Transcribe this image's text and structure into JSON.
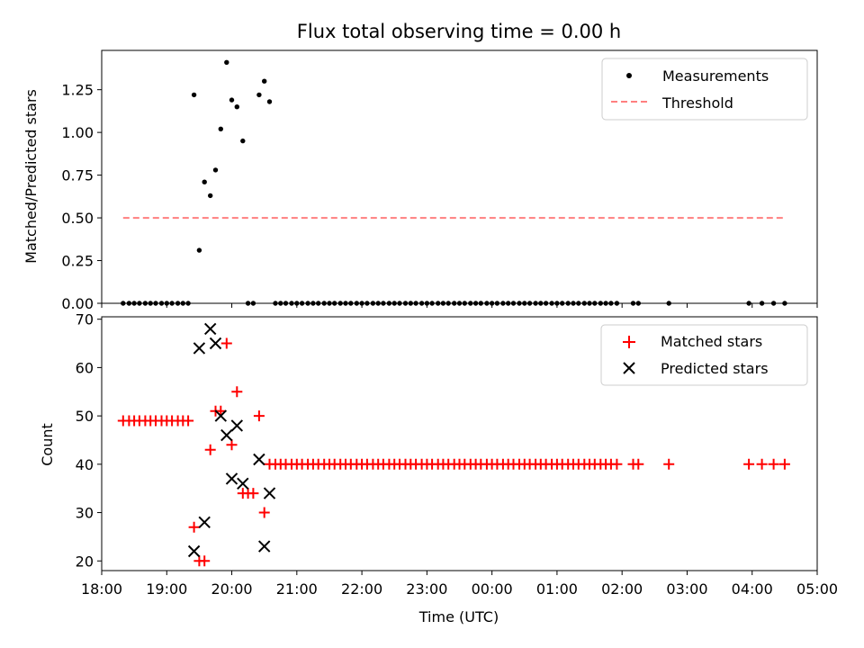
{
  "chart_data": [
    {
      "type": "scatter",
      "title": "Flux total observing time = 0.00 h",
      "xlabel": "",
      "ylabel": "Matched/Predicted stars",
      "xlim": [
        18.0,
        29.0
      ],
      "ylim": [
        0.0,
        1.48
      ],
      "yticks": [
        0.0,
        0.25,
        0.5,
        0.75,
        1.0,
        1.25
      ],
      "ytick_labels": [
        "0.00",
        "0.25",
        "0.50",
        "0.75",
        "1.00",
        "1.25"
      ],
      "legend_position": "top-right",
      "series": [
        {
          "name": "Measurements",
          "color": "#000000",
          "marker": "dot",
          "points": [
            [
              18.33,
              0
            ],
            [
              18.42,
              0
            ],
            [
              18.5,
              0
            ],
            [
              18.58,
              0
            ],
            [
              18.67,
              0
            ],
            [
              18.75,
              0
            ],
            [
              18.83,
              0
            ],
            [
              18.92,
              0
            ],
            [
              19.0,
              0
            ],
            [
              19.08,
              0
            ],
            [
              19.17,
              0
            ],
            [
              19.25,
              0
            ],
            [
              19.33,
              0
            ],
            [
              19.42,
              1.22
            ],
            [
              19.5,
              0.31
            ],
            [
              19.58,
              0.71
            ],
            [
              19.67,
              0.63
            ],
            [
              19.75,
              0.78
            ],
            [
              19.83,
              1.02
            ],
            [
              19.92,
              1.41
            ],
            [
              20.0,
              1.19
            ],
            [
              20.08,
              1.15
            ],
            [
              20.17,
              0.95
            ],
            [
              20.25,
              0
            ],
            [
              20.33,
              0
            ],
            [
              20.42,
              1.22
            ],
            [
              20.5,
              1.3
            ],
            [
              20.58,
              1.18
            ],
            [
              20.67,
              0
            ],
            [
              20.75,
              0
            ],
            [
              20.83,
              0
            ],
            [
              20.92,
              0
            ],
            [
              21.0,
              0
            ],
            [
              21.08,
              0
            ],
            [
              21.17,
              0
            ],
            [
              21.25,
              0
            ],
            [
              21.33,
              0
            ],
            [
              21.42,
              0
            ],
            [
              21.5,
              0
            ],
            [
              21.58,
              0
            ],
            [
              21.67,
              0
            ],
            [
              21.75,
              0
            ],
            [
              21.83,
              0
            ],
            [
              21.92,
              0
            ],
            [
              22.0,
              0
            ],
            [
              22.08,
              0
            ],
            [
              22.17,
              0
            ],
            [
              22.25,
              0
            ],
            [
              22.33,
              0
            ],
            [
              22.42,
              0
            ],
            [
              22.5,
              0
            ],
            [
              22.58,
              0
            ],
            [
              22.67,
              0
            ],
            [
              22.75,
              0
            ],
            [
              22.83,
              0
            ],
            [
              22.92,
              0
            ],
            [
              23.0,
              0
            ],
            [
              23.08,
              0
            ],
            [
              23.17,
              0
            ],
            [
              23.25,
              0
            ],
            [
              23.33,
              0
            ],
            [
              23.42,
              0
            ],
            [
              23.5,
              0
            ],
            [
              23.58,
              0
            ],
            [
              23.67,
              0
            ],
            [
              23.75,
              0
            ],
            [
              23.83,
              0
            ],
            [
              23.92,
              0
            ],
            [
              24.0,
              0
            ],
            [
              24.08,
              0
            ],
            [
              24.17,
              0
            ],
            [
              24.25,
              0
            ],
            [
              24.33,
              0
            ],
            [
              24.42,
              0
            ],
            [
              24.5,
              0
            ],
            [
              24.58,
              0
            ],
            [
              24.67,
              0
            ],
            [
              24.75,
              0
            ],
            [
              24.83,
              0
            ],
            [
              24.92,
              0
            ],
            [
              25.0,
              0
            ],
            [
              25.08,
              0
            ],
            [
              25.17,
              0
            ],
            [
              25.25,
              0
            ],
            [
              25.33,
              0
            ],
            [
              25.42,
              0
            ],
            [
              25.5,
              0
            ],
            [
              25.58,
              0
            ],
            [
              25.67,
              0
            ],
            [
              25.75,
              0
            ],
            [
              25.83,
              0
            ],
            [
              25.92,
              0
            ],
            [
              26.17,
              0
            ],
            [
              26.25,
              0
            ],
            [
              26.72,
              0
            ],
            [
              27.95,
              0
            ],
            [
              28.15,
              0
            ],
            [
              28.33,
              0
            ],
            [
              28.5,
              0
            ]
          ]
        },
        {
          "name": "Threshold",
          "color": "#ff7f7f",
          "style": "dashed",
          "points": [
            [
              18.33,
              0.5
            ],
            [
              28.5,
              0.5
            ]
          ]
        }
      ]
    },
    {
      "type": "scatter",
      "title": "",
      "xlabel": "Time (UTC)",
      "ylabel": "Count",
      "xlim": [
        18.0,
        29.0
      ],
      "ylim": [
        18.0,
        70.5
      ],
      "yticks": [
        20,
        30,
        40,
        50,
        60,
        70
      ],
      "ytick_labels": [
        "20",
        "30",
        "40",
        "50",
        "60",
        "70"
      ],
      "xticks": [
        18,
        19,
        20,
        21,
        22,
        23,
        24,
        25,
        26,
        27,
        28,
        29
      ],
      "xtick_labels": [
        "18:00",
        "19:00",
        "20:00",
        "21:00",
        "22:00",
        "23:00",
        "00:00",
        "01:00",
        "02:00",
        "03:00",
        "04:00",
        "05:00"
      ],
      "legend_position": "top-right",
      "series": [
        {
          "name": "Matched stars",
          "color": "#ff0000",
          "marker": "plus",
          "points": [
            [
              18.33,
              49
            ],
            [
              18.42,
              49
            ],
            [
              18.5,
              49
            ],
            [
              18.58,
              49
            ],
            [
              18.67,
              49
            ],
            [
              18.75,
              49
            ],
            [
              18.83,
              49
            ],
            [
              18.92,
              49
            ],
            [
              19.0,
              49
            ],
            [
              19.08,
              49
            ],
            [
              19.17,
              49
            ],
            [
              19.25,
              49
            ],
            [
              19.33,
              49
            ],
            [
              19.42,
              27
            ],
            [
              19.5,
              20
            ],
            [
              19.58,
              20
            ],
            [
              19.67,
              43
            ],
            [
              19.75,
              51
            ],
            [
              19.83,
              51
            ],
            [
              19.92,
              65
            ],
            [
              20.0,
              44
            ],
            [
              20.08,
              55
            ],
            [
              20.17,
              34
            ],
            [
              20.25,
              34
            ],
            [
              20.33,
              34
            ],
            [
              20.42,
              50
            ],
            [
              20.5,
              30
            ],
            [
              20.58,
              40
            ],
            [
              20.67,
              40
            ],
            [
              20.75,
              40
            ],
            [
              20.83,
              40
            ],
            [
              20.92,
              40
            ],
            [
              21.0,
              40
            ],
            [
              21.08,
              40
            ],
            [
              21.17,
              40
            ],
            [
              21.25,
              40
            ],
            [
              21.33,
              40
            ],
            [
              21.42,
              40
            ],
            [
              21.5,
              40
            ],
            [
              21.58,
              40
            ],
            [
              21.67,
              40
            ],
            [
              21.75,
              40
            ],
            [
              21.83,
              40
            ],
            [
              21.92,
              40
            ],
            [
              22.0,
              40
            ],
            [
              22.08,
              40
            ],
            [
              22.17,
              40
            ],
            [
              22.25,
              40
            ],
            [
              22.33,
              40
            ],
            [
              22.42,
              40
            ],
            [
              22.5,
              40
            ],
            [
              22.58,
              40
            ],
            [
              22.67,
              40
            ],
            [
              22.75,
              40
            ],
            [
              22.83,
              40
            ],
            [
              22.92,
              40
            ],
            [
              23.0,
              40
            ],
            [
              23.08,
              40
            ],
            [
              23.17,
              40
            ],
            [
              23.25,
              40
            ],
            [
              23.33,
              40
            ],
            [
              23.42,
              40
            ],
            [
              23.5,
              40
            ],
            [
              23.58,
              40
            ],
            [
              23.67,
              40
            ],
            [
              23.75,
              40
            ],
            [
              23.83,
              40
            ],
            [
              23.92,
              40
            ],
            [
              24.0,
              40
            ],
            [
              24.08,
              40
            ],
            [
              24.17,
              40
            ],
            [
              24.25,
              40
            ],
            [
              24.33,
              40
            ],
            [
              24.42,
              40
            ],
            [
              24.5,
              40
            ],
            [
              24.58,
              40
            ],
            [
              24.67,
              40
            ],
            [
              24.75,
              40
            ],
            [
              24.83,
              40
            ],
            [
              24.92,
              40
            ],
            [
              25.0,
              40
            ],
            [
              25.08,
              40
            ],
            [
              25.17,
              40
            ],
            [
              25.25,
              40
            ],
            [
              25.33,
              40
            ],
            [
              25.42,
              40
            ],
            [
              25.5,
              40
            ],
            [
              25.58,
              40
            ],
            [
              25.67,
              40
            ],
            [
              25.75,
              40
            ],
            [
              25.83,
              40
            ],
            [
              25.92,
              40
            ],
            [
              26.17,
              40
            ],
            [
              26.25,
              40
            ],
            [
              26.72,
              40
            ],
            [
              27.95,
              40
            ],
            [
              28.15,
              40
            ],
            [
              28.33,
              40
            ],
            [
              28.5,
              40
            ]
          ]
        },
        {
          "name": "Predicted stars",
          "color": "#000000",
          "marker": "x",
          "points": [
            [
              19.42,
              22
            ],
            [
              19.5,
              64
            ],
            [
              19.58,
              28
            ],
            [
              19.67,
              68
            ],
            [
              19.75,
              65
            ],
            [
              19.83,
              50
            ],
            [
              19.92,
              46
            ],
            [
              20.0,
              37
            ],
            [
              20.08,
              48
            ],
            [
              20.17,
              36
            ],
            [
              20.42,
              41
            ],
            [
              20.5,
              23
            ],
            [
              20.58,
              34
            ]
          ]
        }
      ]
    }
  ]
}
